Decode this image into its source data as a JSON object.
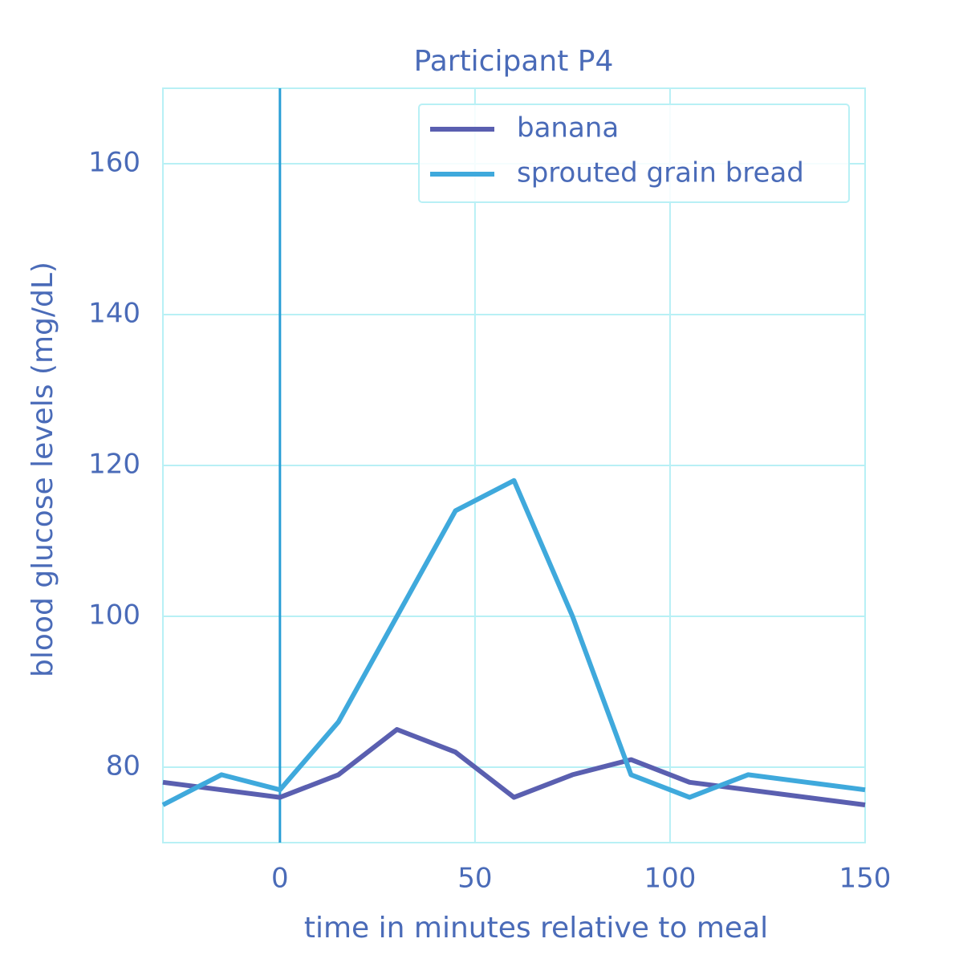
{
  "chart_data": {
    "type": "line",
    "title": "Participant P4",
    "x_label": "time in minutes relative to meal",
    "y_label": "blood glucose levels (mg/dL)",
    "x": [
      -30,
      -15,
      0,
      15,
      30,
      45,
      60,
      75,
      90,
      105,
      120,
      135,
      150
    ],
    "series": [
      {
        "name": "banana",
        "color": "#5a5fb0",
        "values": [
          78,
          77,
          76,
          79,
          85,
          82,
          76,
          79,
          81,
          78,
          77,
          76,
          75
        ]
      },
      {
        "name": "sprouted grain bread",
        "color": "#3fa9dc",
        "values": [
          75,
          79,
          77,
          86,
          100,
          114,
          118,
          100,
          79,
          76,
          79,
          78,
          77
        ]
      }
    ],
    "xlim": [
      -30,
      150
    ],
    "ylim": [
      70,
      170
    ],
    "xticks": [
      0,
      50,
      100,
      150
    ],
    "yticks": [
      80,
      100,
      120,
      140,
      160
    ],
    "vline_x": 0,
    "grid": true,
    "legend": "upper right"
  }
}
